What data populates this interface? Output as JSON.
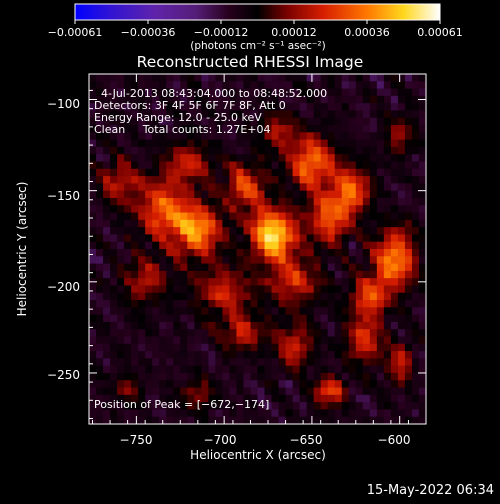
{
  "chart_data": {
    "type": "heatmap",
    "title": "Reconstructed RHESSI Image",
    "xlabel": "Heliocentric X (arcsec)",
    "ylabel": "Heliocentric Y (arcsec)",
    "xlim": [
      -777,
      -585
    ],
    "ylim": [
      -278,
      -86
    ],
    "x_ticks": [
      -750,
      -700,
      -650,
      -600
    ],
    "y_ticks": [
      -250,
      -200,
      -150,
      -100
    ],
    "x_tick_labels": [
      "−750",
      "−700",
      "−650",
      "−600"
    ],
    "y_tick_labels": [
      "−250",
      "−200",
      "−150",
      "−100"
    ],
    "colorbar": {
      "range": [
        -0.00061,
        0.00061
      ],
      "tick_labels": [
        "−0.00061",
        "−0.00036",
        "−0.00012",
        "0.00012",
        "0.00036",
        "0.00061"
      ],
      "unit_label": "(photons cm⁻² s⁻¹ asec⁻²)",
      "colormap": "blue-purple-red-orange-yellow-white"
    },
    "info_lines": [
      "4-Jul-2013 08:43:04.000 to 08:48:52.000",
      "Detectors: 3F 4F 5F 6F 7F 8F, Att 0",
      "Energy Range: 12.0 - 25.0 keV",
      "Clean     Total counts: 1.27E+04"
    ],
    "peak_label": "Position of Peak = [−672,−174]",
    "peak": [
      -672,
      -174
    ],
    "blobs": [
      {
        "x": -672,
        "y": -174,
        "amp": 1.0,
        "sx": 9,
        "sy": 10
      },
      {
        "x": -715,
        "y": -172,
        "amp": 0.78,
        "sx": 9,
        "sy": 10
      },
      {
        "x": -735,
        "y": -160,
        "amp": 0.62,
        "sx": 10,
        "sy": 12
      },
      {
        "x": -760,
        "y": -145,
        "amp": 0.4,
        "sx": 8,
        "sy": 8
      },
      {
        "x": -688,
        "y": -148,
        "amp": 0.55,
        "sx": 8,
        "sy": 9
      },
      {
        "x": -650,
        "y": -135,
        "amp": 0.72,
        "sx": 9,
        "sy": 10
      },
      {
        "x": -640,
        "y": -165,
        "amp": 0.6,
        "sx": 8,
        "sy": 10
      },
      {
        "x": -627,
        "y": -150,
        "amp": 0.62,
        "sx": 7,
        "sy": 9
      },
      {
        "x": -603,
        "y": -188,
        "amp": 0.75,
        "sx": 8,
        "sy": 12
      },
      {
        "x": -618,
        "y": -208,
        "amp": 0.55,
        "sx": 7,
        "sy": 8
      },
      {
        "x": -660,
        "y": -200,
        "amp": 0.48,
        "sx": 10,
        "sy": 9
      },
      {
        "x": -700,
        "y": -205,
        "amp": 0.45,
        "sx": 11,
        "sy": 9
      },
      {
        "x": -745,
        "y": -200,
        "amp": 0.38,
        "sx": 9,
        "sy": 9
      },
      {
        "x": -690,
        "y": -228,
        "amp": 0.42,
        "sx": 9,
        "sy": 7
      },
      {
        "x": -660,
        "y": -235,
        "amp": 0.45,
        "sx": 7,
        "sy": 8
      },
      {
        "x": -640,
        "y": -260,
        "amp": 0.55,
        "sx": 6,
        "sy": 6
      },
      {
        "x": -620,
        "y": -232,
        "amp": 0.52,
        "sx": 7,
        "sy": 9
      },
      {
        "x": -600,
        "y": -245,
        "amp": 0.45,
        "sx": 5,
        "sy": 8
      },
      {
        "x": -715,
        "y": -262,
        "amp": 0.3,
        "sx": 7,
        "sy": 6
      },
      {
        "x": -755,
        "y": -258,
        "amp": 0.28,
        "sx": 6,
        "sy": 6
      },
      {
        "x": -670,
        "y": -118,
        "amp": 0.35,
        "sx": 8,
        "sy": 7
      },
      {
        "x": -720,
        "y": -135,
        "amp": 0.42,
        "sx": 9,
        "sy": 8
      },
      {
        "x": -600,
        "y": -120,
        "amp": 0.3,
        "sx": 6,
        "sy": 8
      }
    ]
  },
  "footer": {
    "timestamp": "15-May-2022 06:34"
  }
}
